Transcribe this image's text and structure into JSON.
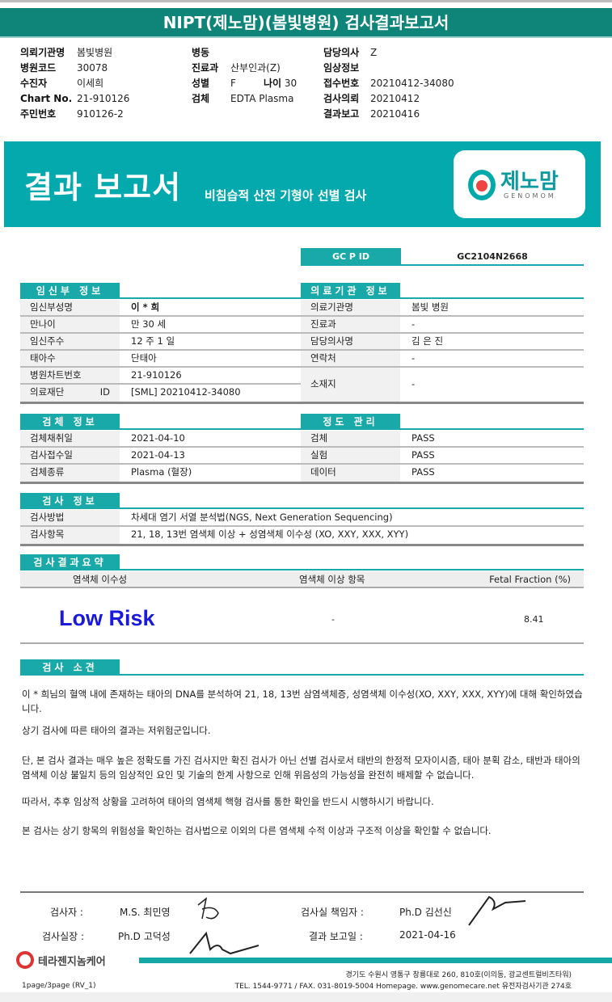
{
  "title": "NIPT(제노맘)(봄빛병원) 검사결과보고서",
  "header": {
    "col1": [
      {
        "k": "의뢰기관명",
        "v": "봄빛병원"
      },
      {
        "k": "병원코드",
        "v": "30078"
      },
      {
        "k": "수진자",
        "v": "이세희"
      },
      {
        "k": "Chart No.",
        "v": "21-910126"
      },
      {
        "k": "주민번호",
        "v": "910126-2"
      }
    ],
    "col2": [
      {
        "k": "병동",
        "v": ""
      },
      {
        "k": "진료과",
        "v": "산부인과(Z)"
      },
      {
        "k": "성별",
        "v": "F"
      },
      {
        "k": "검체",
        "v": "EDTA Plasma"
      }
    ],
    "age_label": "나이",
    "age_value": "30",
    "col3": [
      {
        "k": "담당의사",
        "v": "Z"
      },
      {
        "k": "임상정보",
        "v": ""
      },
      {
        "k": "접수번호",
        "v": "20210412-34080"
      },
      {
        "k": "검사의뢰",
        "v": "20210412"
      },
      {
        "k": "결과보고",
        "v": "20210416"
      }
    ]
  },
  "banner": {
    "title": "결과 보고서",
    "subtitle": "비침습적 산전 기형아 선별 검사",
    "logo_kr": "제노맘",
    "logo_en": "GENOMOM"
  },
  "gcp": {
    "label": "GC P ID",
    "value": "GC2104N2668"
  },
  "pregnant": {
    "title": "임신부 정보",
    "rows": [
      {
        "k": "임신부성명",
        "v": "이 * 희"
      },
      {
        "k": "만나이",
        "v": "만 30 세"
      },
      {
        "k": "임신주수",
        "v": "12 주 1 일"
      },
      {
        "k": "태아수",
        "v": "단태아"
      },
      {
        "k": "병원차트번호",
        "v": "21-910126"
      },
      {
        "k": "의료재단 ID",
        "v": "[SML] 20210412-34080"
      }
    ]
  },
  "institution": {
    "title": "의료기관 정보",
    "rows": [
      {
        "k": "의료기관명",
        "v": "봄빛 병원"
      },
      {
        "k": "진료과",
        "v": "-"
      },
      {
        "k": "담당의사명",
        "v": "김 은 진"
      },
      {
        "k": "연락처",
        "v": "-"
      },
      {
        "k": "소재지",
        "v": "-"
      }
    ]
  },
  "specimen": {
    "title": "검체 정보",
    "rows": [
      {
        "k": "검체채취일",
        "v": "2021-04-10"
      },
      {
        "k": "검사접수일",
        "v": "2021-04-13"
      },
      {
        "k": "검체종류",
        "v": "Plasma (혈장)"
      }
    ]
  },
  "qc": {
    "title": "정도 관리",
    "rows": [
      {
        "k": "검체",
        "v": "PASS"
      },
      {
        "k": "실험",
        "v": "PASS"
      },
      {
        "k": "데이터",
        "v": "PASS"
      }
    ]
  },
  "test": {
    "title": "검사 정보",
    "rows": [
      {
        "k": "검사방법",
        "v": "차세대 염기 서열 분석법(NGS, Next Generation Sequencing)"
      },
      {
        "k": "검사항목",
        "v": "21, 18, 13번 염색체 이상 + 성염색체 이수성 (XO, XXY, XXX, XYY)"
      }
    ]
  },
  "summary": {
    "title": "검사결과요약",
    "columns": [
      "염색체 이수성",
      "염색체 이상 항목",
      "Fetal Fraction (%)"
    ],
    "result": "Low Risk",
    "abnormal": "-",
    "fetal_fraction": "8.41",
    "result_color": "#1a1adc"
  },
  "opinion": {
    "title": "검사 소견",
    "paragraphs": [
      "이 * 희님의 혈액 내에 존재하는 태아의 DNA를 분석하여 21, 18, 13번 삼염색체증, 성염색체 이수성(XO, XXY, XXX, XYY)에 대해 확인하였습니다.",
      "상기 검사에 따른 태아의 결과는 저위험군입니다.",
      "단, 본 검사 결과는 매우 높은 정확도를 가진 검사지만 확진 검사가 아닌 선별 검사로서 태반의 한정적 모자이시즘, 태아 분획 감소, 태반과 태아의 염색체 이상 불일치 등의 임상적인 요인 및 기술의 한계 사항으로 인해 위음성의 가능성을 완전히 배제할 수 없습니다.",
      "따라서, 추후 임상적 상황을 고려하여 태아의 염색체 핵형 검사를 통한 확인을 반드시 시행하시기 바랍니다.",
      "본 검사는 상기 항목의 위험성을 확인하는 검사법으로 이외의 다른 염색체 수적 이상과 구조적 이상을 확인할 수 없습니다."
    ]
  },
  "signatures": {
    "tester_label": "검사자 :",
    "tester": "M.S. 최민영",
    "director_label": "검사실장 :",
    "director": "Ph.D 고덕성",
    "manager_label": "검사실 책임자 :",
    "manager": "Ph.D 김선신",
    "report_date_label": "결과 보고일 :",
    "report_date": "2021-04-16"
  },
  "footer": {
    "company": "테라젠지놈케어",
    "address": "경기도 수원시 영통구 창룡대로 260, 810호(이의동, 광교센트럴비즈타워)",
    "contact": "TEL. 1544-9771 / FAX. 031-8019-5004 Homepage. www.genomecare.net 유전자검사기관 274호",
    "page": "1page/3page (RV_1)"
  }
}
